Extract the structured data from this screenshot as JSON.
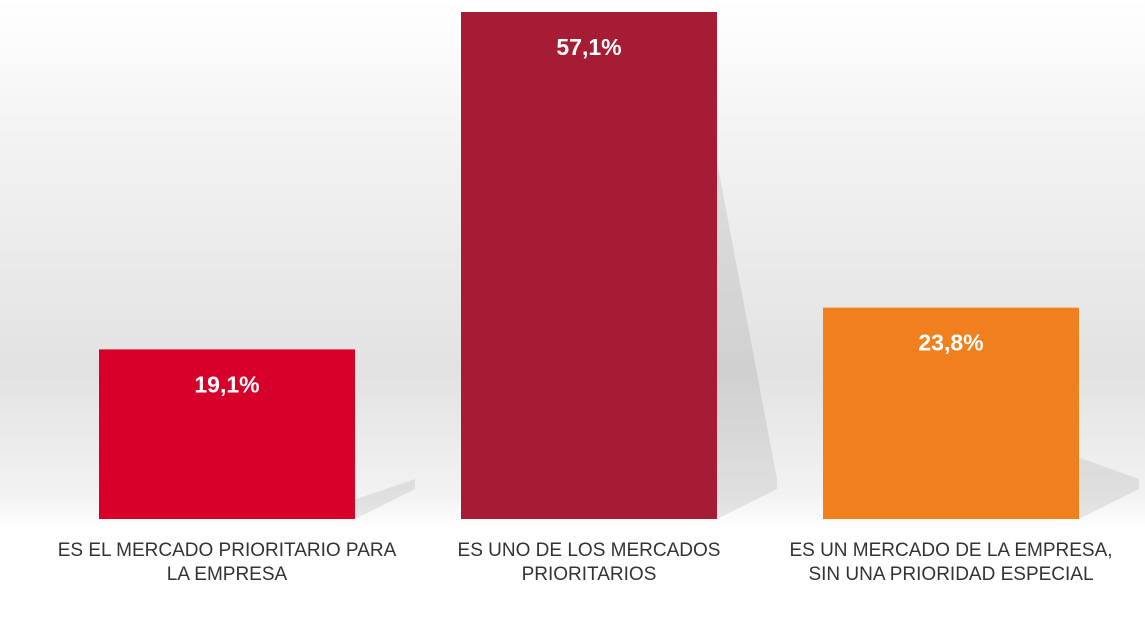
{
  "chart_data": {
    "type": "bar",
    "categories": [
      "ES EL MERCADO PRIORITARIO PARA LA EMPRESA",
      "ES UNO DE LOS MERCADOS PRIORITARIOS",
      "ES UN MERCADO DE LA EMPRESA, SIN UNA PRIORIDAD ESPECIAL"
    ],
    "values": [
      19.1,
      57.1,
      23.8
    ],
    "value_labels": [
      "19,1%",
      "57,1%",
      "23,8%"
    ],
    "colors": [
      "#d7002a",
      "#a51c34",
      "#f0801e"
    ]
  }
}
